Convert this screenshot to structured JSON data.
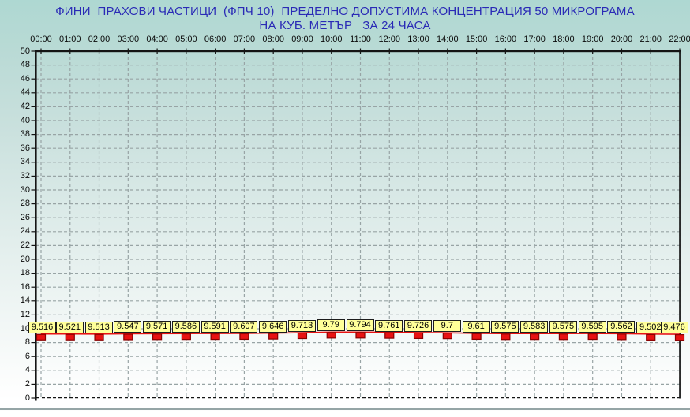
{
  "page": {
    "background_top": "#aed8d2",
    "background_bottom": "#ffffff",
    "title_color": "#2a2ab6"
  },
  "chart_data": {
    "type": "line",
    "title": {
      "line1": "ФИНИ  ПРАХОВИ ЧАСТИЦИ  (ФПЧ 10)  ПРЕДЕЛНО ДОПУСТИМА КОНЦЕНТРАЦИЯ 50 МИКРОГРАМА",
      "line2": "НА КУБ. МЕТЪР   ЗА 24 ЧАСА"
    },
    "x_labels": [
      "00:00",
      "01:00",
      "02:00",
      "03:00",
      "04:00",
      "05:00",
      "06:00",
      "07:00",
      "08:00",
      "09:00",
      "10:00",
      "11:00",
      "12:00",
      "13:00",
      "14:00",
      "15:00",
      "16:00",
      "17:00",
      "18:00",
      "19:00",
      "20:00",
      "21:00",
      "22:00"
    ],
    "series": [
      {
        "name": "ФПЧ 10",
        "values": [
          9.516,
          9.521,
          9.513,
          9.547,
          9.571,
          9.586,
          9.591,
          9.607,
          9.646,
          9.713,
          9.79,
          9.794,
          9.761,
          9.726,
          9.7,
          9.61,
          9.575,
          9.583,
          9.575,
          9.595,
          9.562,
          9.502,
          9.476
        ]
      }
    ],
    "y_ticks": [
      0,
      2,
      4,
      6,
      8,
      10,
      12,
      14,
      16,
      18,
      20,
      22,
      24,
      26,
      28,
      30,
      32,
      34,
      36,
      38,
      40,
      42,
      44,
      46,
      48,
      50
    ],
    "ylim": [
      0,
      50
    ],
    "limit_value": 50,
    "grid": "dashed",
    "legend": "none",
    "colors": {
      "line": "#e81212",
      "marker_fill": "#e81212",
      "marker_border": "#8a0000",
      "label_box_fill": "#ffff99",
      "label_box_border": "#1c1c1c",
      "gridline": "#98a4a5",
      "axis": "#141414",
      "title": "#2a2ab6",
      "tick_text": "#0a0a0a"
    }
  }
}
